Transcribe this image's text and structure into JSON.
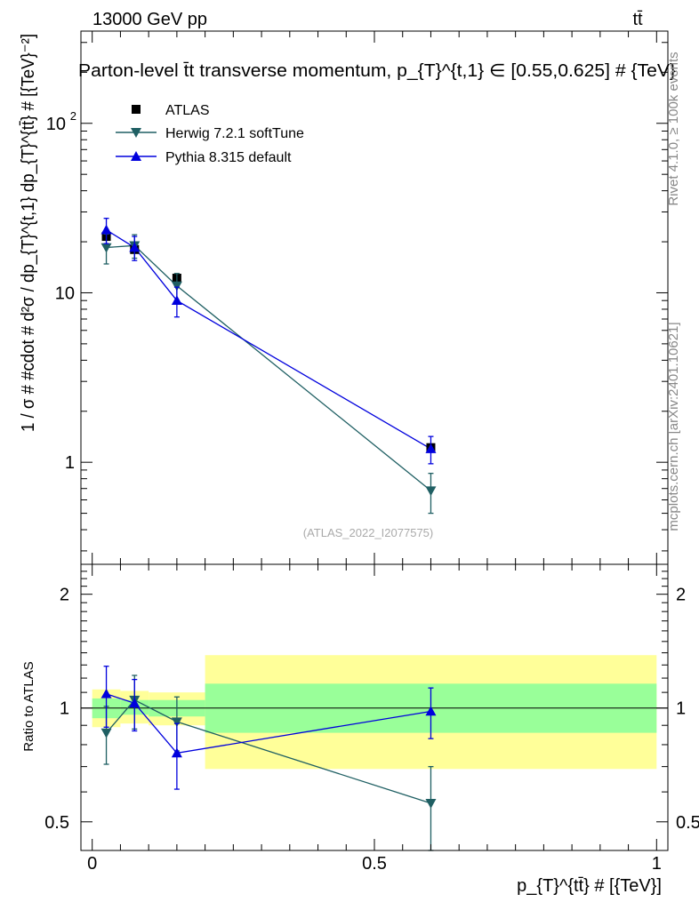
{
  "header": {
    "energy_label": "13000 GeV pp",
    "process_label": "tt̄"
  },
  "side_labels": {
    "rivet": "Rivet 4.1.0, ≥ 100k events",
    "mcplots": "mcplots.cern.ch [arXiv:2401.10621]"
  },
  "analysis_tag": "(ATLAS_2022_I2077575)",
  "colors": {
    "data": "#000000",
    "herwig": "#1f5f63",
    "pythia": "#0000dd",
    "band_inner": "#99ff99",
    "band_outer": "#ffff99"
  },
  "chart_data": [
    {
      "type": "scatter",
      "title": "Parton-level t̄t transverse momentum, p_{T}^{t,1} ∈ [0.55,0.625] # {TeV}",
      "xlabel": "p_{T}^{tt̄} # [{TeV}]",
      "ylabel": "1 / σ # #cdot # d²σ / dp_{T}^{t,1} dp_{T}^{tt̄} # [{TeV}⁻²]",
      "yscale": "log",
      "xlim": [
        -0.02,
        1.02
      ],
      "ylim": [
        0.25,
        350
      ],
      "yticks": [
        {
          "value": 100,
          "base": "10",
          "exp": "2"
        },
        {
          "value": 10,
          "base": "10",
          "exp": ""
        },
        {
          "value": 1,
          "base": "1",
          "exp": ""
        }
      ],
      "legend": {
        "position": "top-left",
        "entries": [
          "ATLAS",
          "Herwig 7.2.1 softTune",
          "Pythia 8.315 default"
        ]
      },
      "series": [
        {
          "name": "ATLAS",
          "marker": "square",
          "x": [
            0.025,
            0.075,
            0.15,
            0.6
          ],
          "y": [
            21.5,
            18.0,
            12.2,
            1.22
          ],
          "bins": [
            [
              0,
              0.05
            ],
            [
              0.05,
              0.1
            ],
            [
              0.1,
              0.2
            ],
            [
              0.2,
              1.0
            ]
          ]
        },
        {
          "name": "Herwig 7.2.1 softTune",
          "marker": "triangle-down",
          "x": [
            0.025,
            0.075,
            0.15,
            0.6
          ],
          "y": [
            18.5,
            19.0,
            11.0,
            0.68
          ],
          "yerr_low": [
            3.7,
            3.0,
            2.0,
            0.18
          ],
          "yerr_high": [
            3.7,
            3.0,
            2.0,
            0.18
          ]
        },
        {
          "name": "Pythia 8.315 default",
          "marker": "triangle-up",
          "x": [
            0.025,
            0.075,
            0.15,
            0.6
          ],
          "y": [
            23.5,
            18.5,
            9.0,
            1.2
          ],
          "yerr_low": [
            4.0,
            3.0,
            1.8,
            0.22
          ],
          "yerr_high": [
            4.0,
            3.0,
            1.8,
            0.22
          ]
        }
      ]
    },
    {
      "type": "scatter",
      "title": "",
      "xlabel": "p_{T}^{tt̄} # [{TeV}]",
      "ylabel": "Ratio to ATLAS",
      "yscale": "log",
      "xlim": [
        -0.02,
        1.02
      ],
      "ylim": [
        0.42,
        2.4
      ],
      "xticks": [
        0,
        0.5,
        1
      ],
      "xtick_labels": [
        "0",
        "0.5",
        "1"
      ],
      "yticks": [
        0.5,
        1,
        2
      ],
      "ytick_labels": [
        "0.5",
        "1",
        "2"
      ],
      "reference_line": 1,
      "bands": [
        {
          "x": [
            0,
            0.05
          ],
          "inner": [
            0.94,
            1.06
          ],
          "outer": [
            0.89,
            1.12
          ]
        },
        {
          "x": [
            0.05,
            0.1
          ],
          "inner": [
            0.96,
            1.05
          ],
          "outer": [
            0.91,
            1.11
          ]
        },
        {
          "x": [
            0.1,
            0.2
          ],
          "inner": [
            0.95,
            1.05
          ],
          "outer": [
            0.9,
            1.1
          ]
        },
        {
          "x": [
            0.2,
            1.0
          ],
          "inner": [
            0.86,
            1.16
          ],
          "outer": [
            0.69,
            1.38
          ]
        }
      ],
      "series": [
        {
          "name": "Herwig 7.2.1 softTune",
          "marker": "triangle-down",
          "x": [
            0.025,
            0.075,
            0.15,
            0.6
          ],
          "y": [
            0.86,
            1.05,
            0.92,
            0.56
          ],
          "yerr_low": [
            0.15,
            0.17,
            0.15,
            0.14
          ],
          "yerr_high": [
            0.15,
            0.17,
            0.15,
            0.14
          ]
        },
        {
          "name": "Pythia 8.315 default",
          "marker": "triangle-up",
          "x": [
            0.025,
            0.075,
            0.15,
            0.6
          ],
          "y": [
            1.09,
            1.03,
            0.76,
            0.98
          ],
          "yerr_low": [
            0.2,
            0.16,
            0.15,
            0.15
          ],
          "yerr_high": [
            0.2,
            0.16,
            0.15,
            0.15
          ]
        }
      ]
    }
  ]
}
